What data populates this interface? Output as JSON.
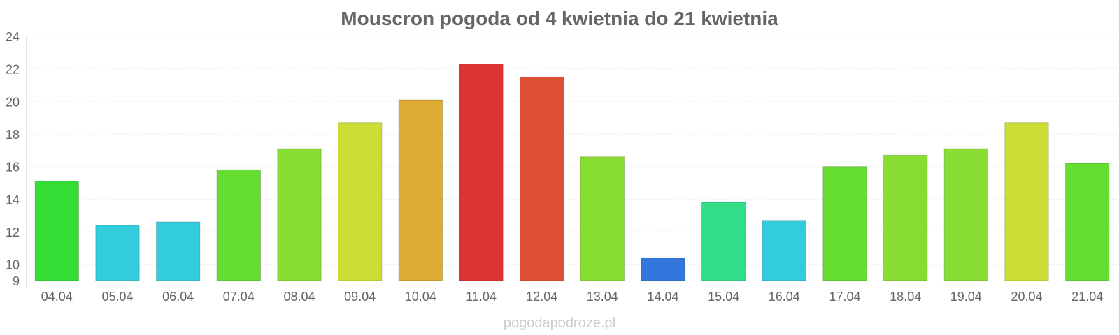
{
  "chart_data": {
    "type": "bar",
    "title": "Mouscron pogoda od 4 kwietnia do 21 kwietnia",
    "xlabel": "",
    "ylabel": "",
    "ylim": [
      9,
      24
    ],
    "y_ticks": [
      9,
      10,
      12,
      14,
      16,
      18,
      20,
      22,
      24
    ],
    "grid": true,
    "categories": [
      "04.04",
      "05.04",
      "06.04",
      "07.04",
      "08.04",
      "09.04",
      "10.04",
      "11.04",
      "12.04",
      "13.04",
      "14.04",
      "15.04",
      "16.04",
      "17.04",
      "18.04",
      "19.04",
      "20.04",
      "21.04"
    ],
    "values": [
      15.1,
      12.4,
      12.6,
      15.8,
      17.1,
      18.7,
      20.1,
      22.3,
      21.5,
      16.6,
      10.4,
      13.8,
      12.7,
      16.0,
      16.7,
      17.1,
      18.7,
      16.2
    ],
    "colors": [
      "#33dd33",
      "#33ccdd",
      "#33ccdd",
      "#66dd33",
      "#88dd33",
      "#ccdd33",
      "#ddaa33",
      "#dd3333",
      "#dd5033",
      "#88dd33",
      "#3377dd",
      "#33dd88",
      "#33ccdd",
      "#66dd33",
      "#88dd33",
      "#88dd33",
      "#ccdd33",
      "#66dd33"
    ]
  },
  "watermark": "pogodapodroze.pl"
}
